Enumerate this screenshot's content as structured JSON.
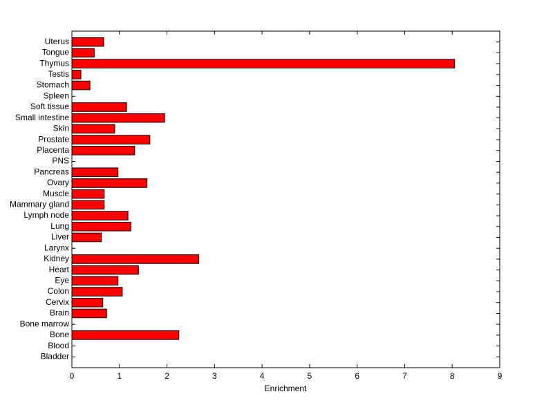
{
  "chart_data": {
    "type": "barh",
    "xlabel": "Enrichment",
    "categories": [
      "Bladder",
      "Blood",
      "Bone",
      "Bone marrow",
      "Brain",
      "Cervix",
      "Colon",
      "Eye",
      "Heart",
      "Kidney",
      "Larynx",
      "Liver",
      "Lung",
      "Lymph node",
      "Mammary gland",
      "Muscle",
      "Ovary",
      "Pancreas",
      "PNS",
      "Placenta",
      "Prostate",
      "Skin",
      "Small intestine",
      "Soft tissue",
      "Spleen",
      "Stomach",
      "Testis",
      "Thymus",
      "Tongue",
      "Uterus"
    ],
    "values": [
      0,
      0,
      2.25,
      0,
      0.73,
      0.65,
      1.06,
      0.97,
      1.4,
      2.67,
      0,
      0.62,
      1.24,
      1.18,
      0.68,
      0.68,
      1.58,
      0.97,
      0,
      1.32,
      1.64,
      0.9,
      1.95,
      1.15,
      0,
      0.38,
      0.19,
      8.05,
      0.47,
      0.67
    ],
    "color": "#ff0000",
    "xlim": [
      0,
      9
    ],
    "xticks": [
      0,
      1,
      2,
      3,
      4,
      5,
      6,
      7,
      8,
      9
    ]
  }
}
